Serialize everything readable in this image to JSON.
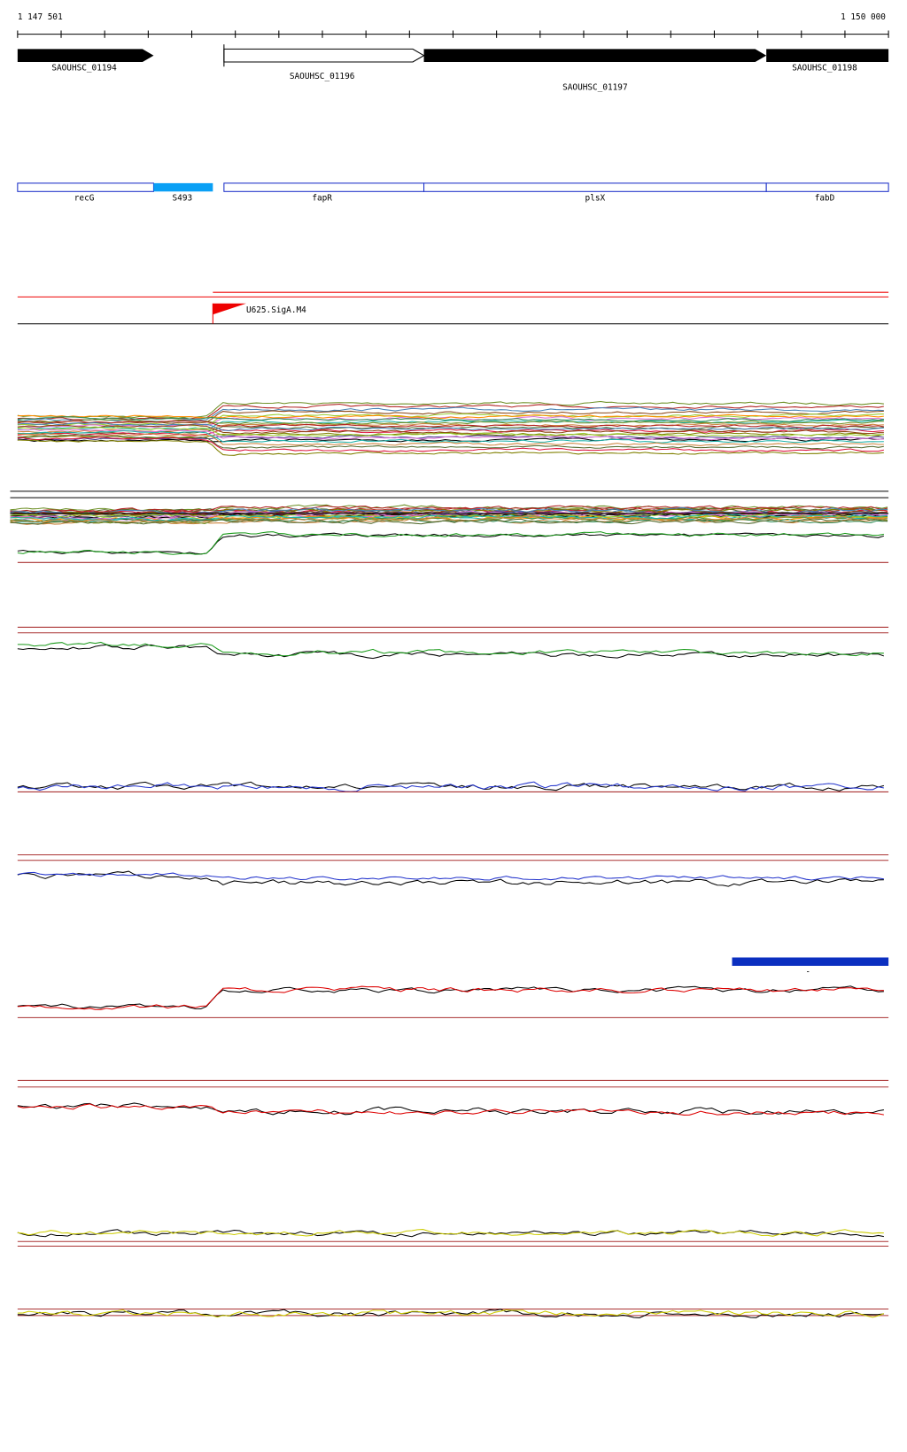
{
  "ruler": {
    "start": "1 147 501",
    "end": "1 150 000"
  },
  "genes": [
    {
      "label": "SAOUHSC_01194"
    },
    {
      "label": "SAOUHSC_01196"
    },
    {
      "label": "SAOUHSC_01197"
    },
    {
      "label": "SAOUHSC_01198"
    }
  ],
  "features": [
    {
      "label": "recG"
    },
    {
      "label": "S493"
    },
    {
      "label": "fapR"
    },
    {
      "label": "plsX"
    },
    {
      "label": "fabD"
    }
  ],
  "promoter": {
    "label": "U625.SigA.M4"
  },
  "marker": {
    "label": "-"
  }
}
